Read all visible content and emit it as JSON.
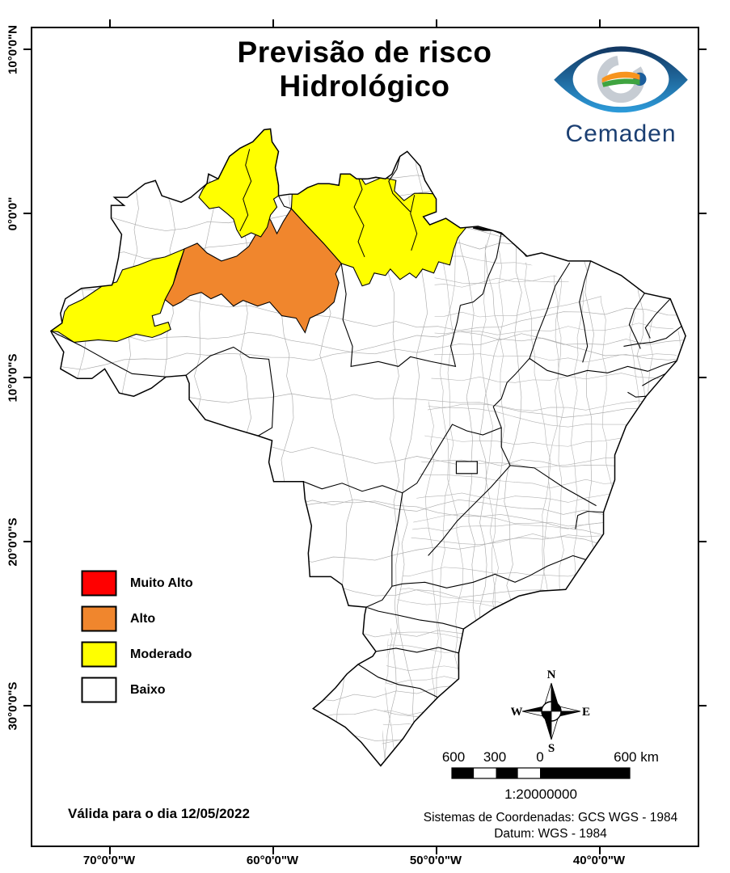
{
  "title": {
    "line1": "Previsão de risco",
    "line2": "Hidrológico"
  },
  "logo": {
    "name": "Cemaden"
  },
  "legend": {
    "items": [
      {
        "label": "Muito Alto",
        "color": "#FF0000"
      },
      {
        "label": "Alto",
        "color": "#F0862D"
      },
      {
        "label": "Moderado",
        "color": "#FFFF00"
      },
      {
        "label": "Baixo",
        "color": "#FFFFFF"
      }
    ]
  },
  "validity": "Válida para o dia 12/05/2022",
  "coords_note": {
    "line1": "Sistemas de Coordenadas: GCS WGS - 1984",
    "line2": "Datum: WGS - 1984"
  },
  "scalebar": {
    "labels": [
      "600",
      "300",
      "0",
      "600 km"
    ],
    "ratio": "1:20000000"
  },
  "compass": {
    "n": "N",
    "e": "E",
    "s": "S",
    "w": "W"
  },
  "axes": {
    "lat": [
      "10°0'0\"N",
      "0°0'0\"",
      "10°0'0\"S",
      "20°0'0\"S",
      "30°0'0\"S"
    ],
    "lon": [
      "70°0'0\"W",
      "60°0'0\"W",
      "50°0'0\"W",
      "40°0'0\"W"
    ]
  },
  "colors": {
    "muito_alto": "#FF0000",
    "alto": "#F0862D",
    "moderado": "#FFFF00",
    "baixo": "#FFFFFF",
    "border": "#000000",
    "muni_line": "#ABABAB"
  }
}
